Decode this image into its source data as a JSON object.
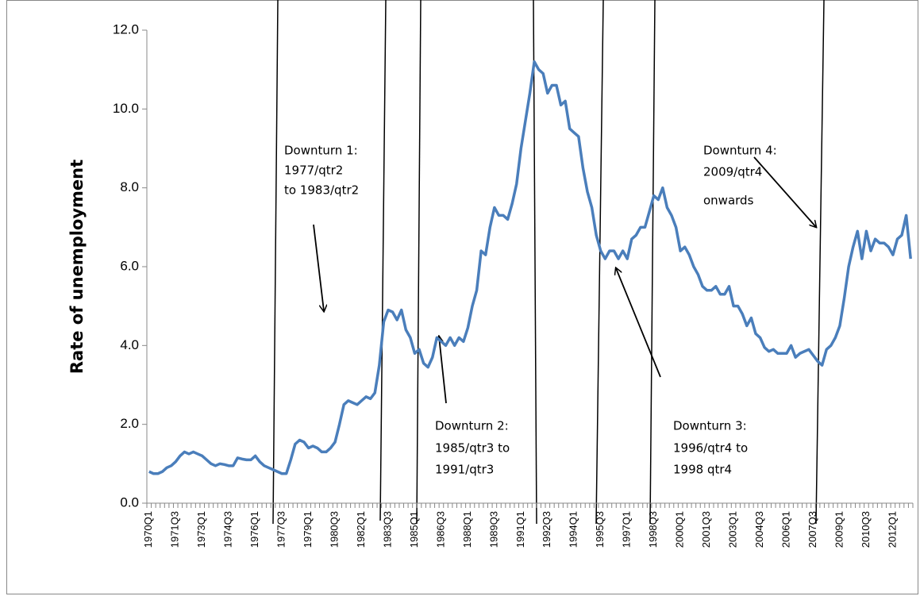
{
  "chart_data": {
    "type": "line",
    "y_label": "Rate of unemployment",
    "categories": [
      "1970Q1",
      null,
      null,
      null,
      null,
      null,
      "1971Q3",
      null,
      null,
      null,
      null,
      null,
      "1973Q1",
      null,
      null,
      null,
      null,
      null,
      "1974Q3",
      null,
      null,
      null,
      null,
      null,
      "1976Q1",
      null,
      null,
      null,
      null,
      null,
      "1977Q3",
      null,
      null,
      null,
      null,
      null,
      "1979Q1",
      null,
      null,
      null,
      null,
      null,
      "1980Q3",
      null,
      null,
      null,
      null,
      null,
      "1982Q1",
      null,
      null,
      null,
      null,
      null,
      "1983Q3",
      null,
      null,
      null,
      null,
      null,
      "1985Q1",
      null,
      null,
      null,
      null,
      null,
      "1986Q3",
      null,
      null,
      null,
      null,
      null,
      "1988Q1",
      null,
      null,
      null,
      null,
      null,
      "1989Q3",
      null,
      null,
      null,
      null,
      null,
      "1991Q1",
      null,
      null,
      null,
      null,
      null,
      "1992Q3",
      null,
      null,
      null,
      null,
      null,
      "1994Q1",
      null,
      null,
      null,
      null,
      null,
      "1995Q3",
      null,
      null,
      null,
      null,
      null,
      "1997Q1",
      null,
      null,
      null,
      null,
      null,
      "1998Q3",
      null,
      null,
      null,
      null,
      null,
      "2000Q1",
      null,
      null,
      null,
      null,
      null,
      "2001Q3",
      null,
      null,
      null,
      null,
      null,
      "2003Q1",
      null,
      null,
      null,
      null,
      null,
      "2004Q3",
      null,
      null,
      null,
      null,
      null,
      "2006Q1",
      null,
      null,
      null,
      null,
      null,
      "2007Q3",
      null,
      null,
      null,
      null,
      null,
      "2009Q1",
      null,
      null,
      null,
      null,
      null,
      "2010Q3",
      null,
      null,
      null,
      null,
      null,
      "2012Q1",
      null,
      null,
      null,
      null
    ],
    "values": [
      0.8,
      0.75,
      0.75,
      0.8,
      0.9,
      0.95,
      1.05,
      1.2,
      1.3,
      1.25,
      1.3,
      1.25,
      1.2,
      1.1,
      1.0,
      0.95,
      1.0,
      0.98,
      0.95,
      0.95,
      1.15,
      1.12,
      1.1,
      1.1,
      1.2,
      1.05,
      0.95,
      0.9,
      0.85,
      0.8,
      0.75,
      0.75,
      1.1,
      1.5,
      1.6,
      1.55,
      1.4,
      1.45,
      1.4,
      1.3,
      1.3,
      1.4,
      1.55,
      2.0,
      2.5,
      2.6,
      2.55,
      2.5,
      2.6,
      2.7,
      2.65,
      2.8,
      3.5,
      4.6,
      4.9,
      4.85,
      4.65,
      4.9,
      4.4,
      4.2,
      3.8,
      3.9,
      3.55,
      3.45,
      3.7,
      4.2,
      4.1,
      4.0,
      4.2,
      4.0,
      4.2,
      4.1,
      4.45,
      5.0,
      5.4,
      6.4,
      6.3,
      7.0,
      7.5,
      7.3,
      7.3,
      7.2,
      7.6,
      8.1,
      9.0,
      9.7,
      10.4,
      11.2,
      11.0,
      10.9,
      10.4,
      10.6,
      10.6,
      10.1,
      10.2,
      9.5,
      9.4,
      9.3,
      8.5,
      7.9,
      7.5,
      6.8,
      6.4,
      6.2,
      6.4,
      6.4,
      6.2,
      6.4,
      6.2,
      6.7,
      6.8,
      7.0,
      7.0,
      7.4,
      7.8,
      7.7,
      8.0,
      7.5,
      7.3,
      7.0,
      6.4,
      6.5,
      6.3,
      6.0,
      5.8,
      5.5,
      5.4,
      5.4,
      5.5,
      5.3,
      5.3,
      5.5,
      5.0,
      5.0,
      4.8,
      4.5,
      4.7,
      4.3,
      4.2,
      3.95,
      3.85,
      3.9,
      3.8,
      3.8,
      3.8,
      4.0,
      3.7,
      3.8,
      3.85,
      3.9,
      3.75,
      3.6,
      3.5,
      3.9,
      4.0,
      4.2,
      4.5,
      5.2,
      6.0,
      6.5,
      6.9,
      6.2,
      6.9,
      6.4,
      6.7,
      6.6,
      6.6,
      6.5,
      6.3,
      6.7,
      6.8,
      7.3,
      6.2
    ],
    "color": "#4a7ebb",
    "ylim": [
      0,
      12
    ],
    "yticks": [
      {
        "value": 0,
        "label": "0.0"
      },
      {
        "value": 2,
        "label": "2.0"
      },
      {
        "value": 4,
        "label": "4.0"
      },
      {
        "value": 6,
        "label": "6.0"
      },
      {
        "value": 8,
        "label": "8.0"
      },
      {
        "value": 10,
        "label": "10.0"
      },
      {
        "value": 12,
        "label": "12.0"
      }
    ],
    "grid": false,
    "annotations": [
      {
        "lines": [
          "Downturn 1:",
          "1977/qtr2",
          "to 1983/qtr2"
        ]
      },
      {
        "lines": [
          "Downturn 2:",
          "1985/qtr3 to",
          "1991/qtr3"
        ]
      },
      {
        "lines": [
          "Downturn 3:",
          "1996/qtr4 to",
          "1998 qtr4"
        ]
      },
      {
        "lines": [
          "Downturn 4:",
          "2009/qtr4",
          "onwards"
        ]
      }
    ]
  }
}
